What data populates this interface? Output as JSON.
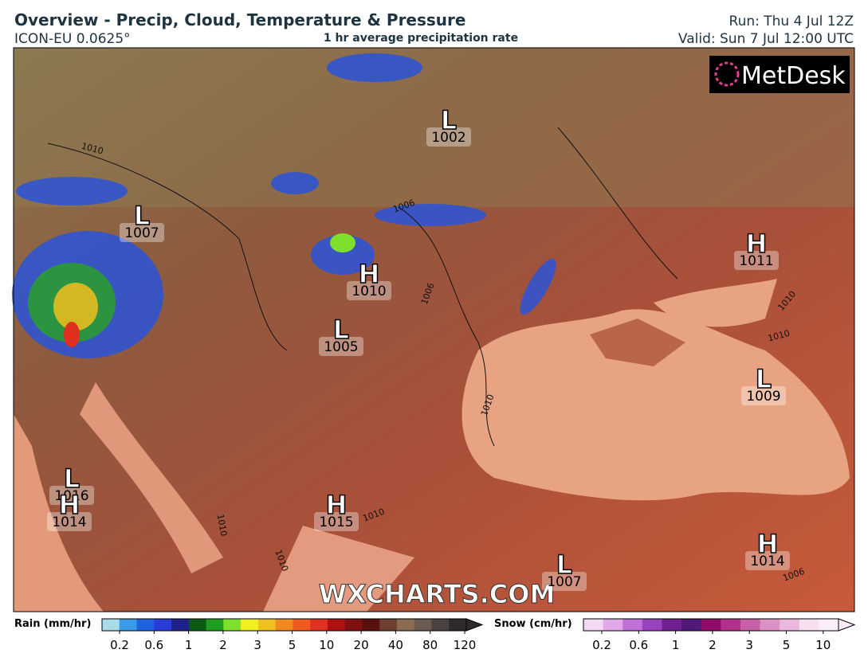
{
  "header": {
    "title": "Overview - Precip, Cloud, Temperature & Pressure",
    "model": "ICON-EU 0.0625°",
    "subtitle": "1 hr average precipitation rate",
    "run": "Run: Thu 4 Jul 12Z",
    "valid": "Valid: Sun 7 Jul 12:00 UTC"
  },
  "map": {
    "logo": "MetDesk",
    "watermark": "WXCHARTS.COM",
    "pressure_centers": [
      {
        "type": "L",
        "value": "1002"
      },
      {
        "type": "L",
        "value": "1007"
      },
      {
        "type": "H",
        "value": "1010"
      },
      {
        "type": "L",
        "value": "1005"
      },
      {
        "type": "H",
        "value": "1011"
      },
      {
        "type": "L",
        "value": "1009"
      },
      {
        "type": "L",
        "value": "1016"
      },
      {
        "type": "H",
        "value": "1014"
      },
      {
        "type": "H",
        "value": "1015"
      },
      {
        "type": "L",
        "value": "1007"
      },
      {
        "type": "H",
        "value": "1014"
      }
    ],
    "isobar_labels": [
      "1010",
      "1006",
      "1006",
      "1010",
      "1010",
      "1010",
      "1010",
      "1010",
      "1010",
      "1006"
    ]
  },
  "legend": {
    "rain": {
      "label": "Rain (mm/hr)",
      "ticks": [
        0.2,
        0.6,
        1,
        2,
        3,
        5,
        10,
        20,
        40,
        80,
        120
      ],
      "colors": [
        "#a8dce8",
        "#3a9be8",
        "#1e64e0",
        "#2a3cd8",
        "#20208a",
        "#0a5a14",
        "#1e9e1e",
        "#7ee02a",
        "#f0f020",
        "#f0c020",
        "#f08a1e",
        "#f05a1e",
        "#e03020",
        "#b01010",
        "#801010",
        "#5a1010",
        "#6e3e2e",
        "#8a6a50",
        "#6a5a50",
        "#4a4240",
        "#2e2a2a"
      ]
    },
    "snow": {
      "label": "Snow (cm/hr)",
      "ticks": [
        0.2,
        0.6,
        1,
        2,
        3,
        5,
        10
      ],
      "colors": [
        "#f4d8f4",
        "#e0a8e8",
        "#c070d8",
        "#9a40c0",
        "#702090",
        "#501878",
        "#900a6a",
        "#b0308a",
        "#c860a8",
        "#dc90c4",
        "#eab8dc",
        "#f6e0f0",
        "#fbeefa"
      ]
    }
  }
}
